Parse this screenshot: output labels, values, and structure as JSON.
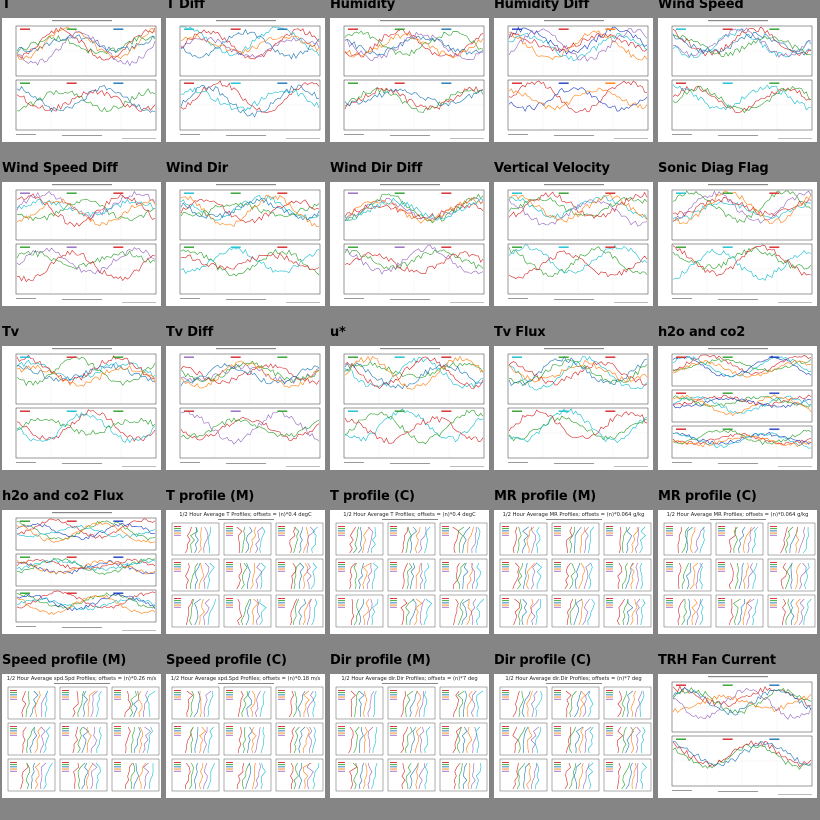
{
  "page": {
    "background": "#858585"
  },
  "thumbnails": [
    {
      "title": "T",
      "kind": "ts2",
      "colors": [
        "#d62728",
        "#2ca02c",
        "#1f77b4",
        "#ff7f0e",
        "#9467bd",
        "#17becf"
      ]
    },
    {
      "title": "T Diff",
      "kind": "ts2",
      "colors": [
        "#17becf",
        "#d62728",
        "#1f77b4",
        "#ff7f0e",
        "#9467bd",
        "#2ca02c"
      ]
    },
    {
      "title": "Humidity",
      "kind": "ts2",
      "colors": [
        "#d62728",
        "#2ca02c",
        "#1f77b4",
        "#ff7f0e",
        "#9467bd",
        "#17becf"
      ]
    },
    {
      "title": "Humidity Diff",
      "kind": "ts2",
      "colors": [
        "#1f3fbf",
        "#d62728",
        "#ff7f0e",
        "#17becf",
        "#9467bd",
        "#2ca02c"
      ]
    },
    {
      "title": "Wind Speed",
      "kind": "ts2",
      "colors": [
        "#17becf",
        "#d62728",
        "#2ca02c",
        "#9467bd",
        "#1f77b4",
        "#ff7f0e"
      ]
    },
    {
      "title": "Wind Speed Diff",
      "kind": "ts2",
      "colors": [
        "#9467bd",
        "#2ca02c",
        "#d62728",
        "#17becf",
        "#ff7f0e",
        "#1f77b4"
      ]
    },
    {
      "title": "Wind Dir",
      "kind": "ts2",
      "colors": [
        "#17becf",
        "#2ca02c",
        "#d62728",
        "#1f77b4",
        "#ff7f0e",
        "#9467bd"
      ]
    },
    {
      "title": "Wind Dir Diff",
      "kind": "ts2",
      "colors": [
        "#9467bd",
        "#2ca02c",
        "#d62728",
        "#ff7f0e",
        "#17becf",
        "#1f77b4"
      ]
    },
    {
      "title": "Vertical Velocity",
      "kind": "ts2",
      "colors": [
        "#17becf",
        "#2ca02c",
        "#d62728",
        "#9467bd",
        "#ff7f0e",
        "#1f77b4"
      ]
    },
    {
      "title": "Sonic Diag Flag",
      "kind": "ts2",
      "colors": [
        "#17becf",
        "#2ca02c",
        "#d62728",
        "#9467bd",
        "#ff7f0e",
        "#1f77b4"
      ]
    },
    {
      "title": "Tv",
      "kind": "ts2",
      "colors": [
        "#17becf",
        "#d62728",
        "#2ca02c",
        "#1f77b4",
        "#ff7f0e",
        "#9467bd"
      ]
    },
    {
      "title": "Tv Diff",
      "kind": "ts2",
      "colors": [
        "#9467bd",
        "#d62728",
        "#2ca02c",
        "#1f77b4",
        "#ff7f0e",
        "#17becf"
      ]
    },
    {
      "title": "u*",
      "kind": "ts2",
      "colors": [
        "#2ca02c",
        "#17becf",
        "#d62728",
        "#1f77b4",
        "#ff7f0e",
        "#9467bd"
      ]
    },
    {
      "title": "Tv Flux",
      "kind": "ts2",
      "colors": [
        "#17becf",
        "#2ca02c",
        "#d62728",
        "#1f77b4",
        "#ff7f0e",
        "#9467bd"
      ]
    },
    {
      "title": "h2o and co2",
      "kind": "ts3",
      "colors": [
        "#d62728",
        "#2ca02c",
        "#1f3fbf",
        "#17becf",
        "#ff7f0e",
        "#9467bd"
      ]
    },
    {
      "title": "h2o and co2 Flux",
      "kind": "ts3",
      "colors": [
        "#2ca02c",
        "#d62728",
        "#1f3fbf",
        "#17becf",
        "#ff7f0e",
        "#9467bd"
      ]
    },
    {
      "title": "T profile (M)",
      "kind": "profile",
      "heading": "1/2 Hour Average T Profiles; offsets = (n)*0.4 degC",
      "colors": [
        "#d62728",
        "#2ca02c",
        "#1f77b4",
        "#ff7f0e",
        "#9467bd",
        "#17becf"
      ]
    },
    {
      "title": "T profile (C)",
      "kind": "profile",
      "heading": "1/2 Hour Average T Profiles; offsets = (n)*0.4 degC",
      "colors": [
        "#d62728",
        "#2ca02c",
        "#1f77b4",
        "#ff7f0e",
        "#9467bd",
        "#17becf"
      ]
    },
    {
      "title": "MR profile (M)",
      "kind": "profile",
      "heading": "1/2 Hour Average MR Profiles; offsets = (n)*0.064 g/kg",
      "colors": [
        "#d62728",
        "#2ca02c",
        "#1f77b4",
        "#ff7f0e",
        "#9467bd",
        "#17becf"
      ]
    },
    {
      "title": "MR profile (C)",
      "kind": "profile",
      "heading": "1/2 Hour Average MR Profiles; offsets = (n)*0.064 g/kg",
      "colors": [
        "#d62728",
        "#2ca02c",
        "#1f77b4",
        "#ff7f0e",
        "#9467bd",
        "#17becf"
      ]
    },
    {
      "title": "Speed profile (M)",
      "kind": "profile",
      "heading": "1/2 Hour Average spd.Spd Profiles; offsets = (n)*0.26 m/s",
      "colors": [
        "#d62728",
        "#2ca02c",
        "#1f77b4",
        "#ff7f0e",
        "#9467bd",
        "#17becf"
      ]
    },
    {
      "title": "Speed profile (C)",
      "kind": "profile",
      "heading": "1/2 Hour Average spd.Spd Profiles; offsets = (n)*0.18 m/s",
      "colors": [
        "#d62728",
        "#2ca02c",
        "#1f77b4",
        "#ff7f0e",
        "#9467bd",
        "#17becf"
      ]
    },
    {
      "title": "Dir profile (M)",
      "kind": "profile",
      "heading": "1/2 Hour Average dir.Dir Profiles; offsets = (n)*7 deg",
      "colors": [
        "#d62728",
        "#2ca02c",
        "#1f77b4",
        "#ff7f0e",
        "#9467bd",
        "#17becf"
      ]
    },
    {
      "title": "Dir profile (C)",
      "kind": "profile",
      "heading": "1/2 Hour Average dir.Dir Profiles; offsets = (n)*7 deg",
      "colors": [
        "#d62728",
        "#2ca02c",
        "#1f77b4",
        "#ff7f0e",
        "#9467bd",
        "#17becf"
      ]
    },
    {
      "title": "TRH Fan Current",
      "kind": "ts2",
      "colors": [
        "#d62728",
        "#2ca02c",
        "#1f77b4",
        "#ff7f0e",
        "#9467bd",
        "#17becf"
      ]
    }
  ]
}
